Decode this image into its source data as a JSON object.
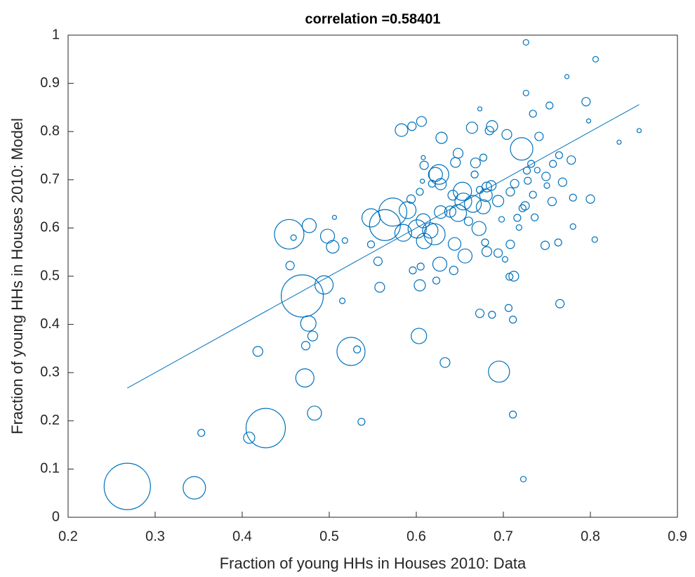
{
  "chart_data": {
    "type": "scatter",
    "title": "correlation =0.58401",
    "x_label": "Fraction of young HHs in Houses 2010: Data",
    "y_label": "Fraction of young HHs in Houses 2010: Model",
    "xlim": [
      0.2,
      0.9
    ],
    "ylim": [
      0,
      1
    ],
    "xticks": [
      0.2,
      0.3,
      0.4,
      0.5,
      0.6,
      0.7,
      0.8,
      0.9
    ],
    "yticks": [
      0,
      0.1,
      0.2,
      0.3,
      0.4,
      0.5,
      0.6,
      0.7,
      0.8,
      0.9,
      1
    ],
    "series": [
      {
        "type": "bubble",
        "color": "#0072bd",
        "x": [
          0.268,
          0.345,
          0.427,
          0.469,
          0.494,
          0.454,
          0.525,
          0.695,
          0.472,
          0.476,
          0.483,
          0.603,
          0.408,
          0.418,
          0.353,
          0.537,
          0.532,
          0.473,
          0.481,
          0.477,
          0.459,
          0.455,
          0.498,
          0.504,
          0.518,
          0.506,
          0.515,
          0.548,
          0.573,
          0.564,
          0.548,
          0.556,
          0.558,
          0.583,
          0.595,
          0.606,
          0.608,
          0.609,
          0.622,
          0.626,
          0.629,
          0.628,
          0.618,
          0.645,
          0.648,
          0.664,
          0.673,
          0.687,
          0.684,
          0.704,
          0.721,
          0.726,
          0.726,
          0.753,
          0.773,
          0.806,
          0.795,
          0.798,
          0.734,
          0.741,
          0.833,
          0.856,
          0.778,
          0.764,
          0.749,
          0.732,
          0.713,
          0.708,
          0.686,
          0.68,
          0.681,
          0.694,
          0.677,
          0.673,
          0.665,
          0.653,
          0.654,
          0.648,
          0.642,
          0.639,
          0.628,
          0.621,
          0.616,
          0.609,
          0.608,
          0.601,
          0.585,
          0.59,
          0.594,
          0.604,
          0.627,
          0.604,
          0.605,
          0.596,
          0.623,
          0.643,
          0.644,
          0.656,
          0.66,
          0.672,
          0.679,
          0.681,
          0.694,
          0.698,
          0.708,
          0.707,
          0.712,
          0.702,
          0.673,
          0.687,
          0.706,
          0.711,
          0.711,
          0.723,
          0.633,
          0.765,
          0.748,
          0.763,
          0.805,
          0.8,
          0.756,
          0.78,
          0.768,
          0.75,
          0.725,
          0.722,
          0.716,
          0.718,
          0.736,
          0.734,
          0.728,
          0.727,
          0.739,
          0.757,
          0.78,
          0.667,
          0.668,
          0.677,
          0.607
        ],
        "values": [
          0.064,
          0.061,
          0.185,
          0.459,
          0.482,
          0.587,
          0.344,
          0.302,
          0.289,
          0.402,
          0.216,
          0.376,
          0.165,
          0.344,
          0.175,
          0.198,
          0.348,
          0.356,
          0.376,
          0.605,
          0.58,
          0.522,
          0.583,
          0.561,
          0.574,
          0.622,
          0.449,
          0.621,
          0.633,
          0.606,
          0.566,
          0.531,
          0.477,
          0.803,
          0.811,
          0.821,
          0.746,
          0.73,
          0.711,
          0.711,
          0.787,
          0.691,
          0.692,
          0.736,
          0.755,
          0.808,
          0.847,
          0.811,
          0.802,
          0.794,
          0.764,
          0.88,
          0.985,
          0.854,
          0.914,
          0.95,
          0.862,
          0.822,
          0.837,
          0.79,
          0.778,
          0.802,
          0.741,
          0.751,
          0.707,
          0.733,
          0.692,
          0.675,
          0.688,
          0.668,
          0.685,
          0.656,
          0.644,
          0.679,
          0.65,
          0.676,
          0.655,
          0.631,
          0.668,
          0.634,
          0.633,
          0.587,
          0.595,
          0.573,
          0.615,
          0.598,
          0.59,
          0.637,
          0.66,
          0.675,
          0.525,
          0.481,
          0.52,
          0.512,
          0.491,
          0.512,
          0.567,
          0.542,
          0.614,
          0.599,
          0.57,
          0.551,
          0.548,
          0.618,
          0.566,
          0.499,
          0.5,
          0.535,
          0.423,
          0.42,
          0.434,
          0.41,
          0.213,
          0.079,
          0.321,
          0.443,
          0.564,
          0.57,
          0.576,
          0.66,
          0.655,
          0.663,
          0.695,
          0.688,
          0.646,
          0.641,
          0.621,
          0.601,
          0.622,
          0.669,
          0.698,
          0.719,
          0.72,
          0.733,
          0.603,
          0.711,
          0.735,
          0.746,
          0.697
        ],
        "sizes": [
          33,
          16,
          28,
          30,
          13,
          21,
          20,
          15,
          13,
          11,
          10,
          11,
          8,
          7,
          5,
          5,
          5,
          6,
          7,
          10,
          4,
          6,
          10,
          9,
          4,
          3,
          4,
          13,
          20,
          22,
          5,
          6,
          7,
          9,
          6,
          7,
          3,
          6,
          10,
          14,
          8,
          8,
          5,
          7,
          7,
          8,
          3,
          8,
          6,
          7,
          16,
          4,
          4,
          5,
          3,
          4,
          6,
          3,
          5,
          6,
          3,
          3,
          6,
          5,
          6,
          5,
          6,
          6,
          7,
          9,
          7,
          8,
          10,
          5,
          12,
          13,
          12,
          12,
          7,
          8,
          9,
          15,
          11,
          11,
          10,
          13,
          12,
          12,
          6,
          5,
          10,
          8,
          5,
          5,
          5,
          6,
          9,
          10,
          6,
          10,
          5,
          7,
          6,
          4,
          6,
          5,
          7,
          4,
          6,
          5,
          5,
          5,
          5,
          4,
          7,
          6,
          6,
          5,
          4,
          6,
          6,
          5,
          6,
          4,
          6,
          5,
          5,
          4,
          5,
          5,
          5,
          5,
          4,
          5,
          4,
          5,
          7,
          5,
          3
        ]
      },
      {
        "type": "line",
        "color": "#0072bd",
        "x": [
          0.268,
          0.856
        ],
        "values": [
          0.268,
          0.856
        ]
      }
    ]
  }
}
